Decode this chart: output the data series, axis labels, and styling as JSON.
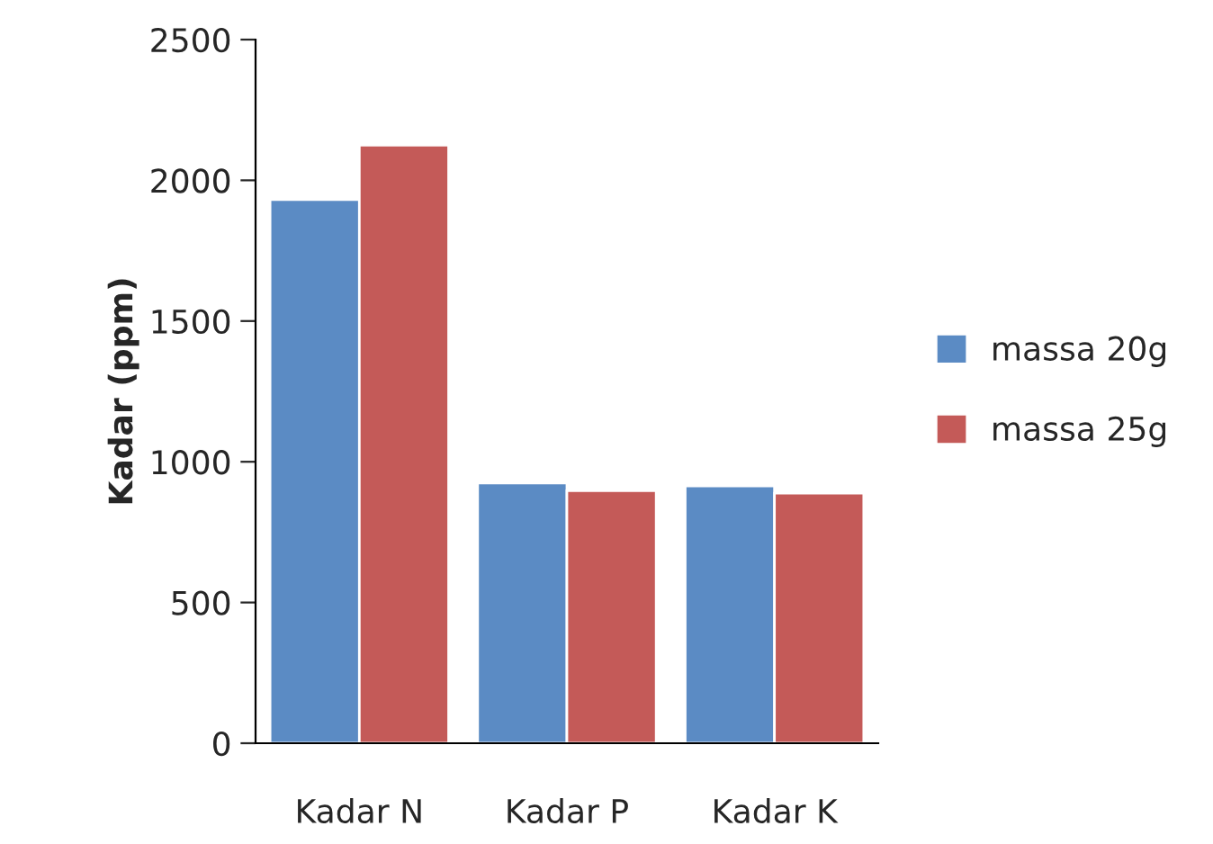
{
  "chart_data": {
    "type": "bar",
    "ylabel": "Kadar (ppm)",
    "categories": [
      "Kadar N",
      "Kadar P",
      "Kadar K"
    ],
    "series": [
      {
        "name": "massa 20g",
        "color": "#5b8bc4",
        "values": [
          1931,
          924,
          914
        ]
      },
      {
        "name": "massa 25g",
        "color": "#c45a58",
        "values": [
          2125,
          897,
          888
        ]
      }
    ],
    "ylim": [
      0,
      2500
    ],
    "yticks": [
      0,
      500,
      1000,
      1500,
      2000,
      2500
    ],
    "grid": false,
    "legend": "right"
  }
}
